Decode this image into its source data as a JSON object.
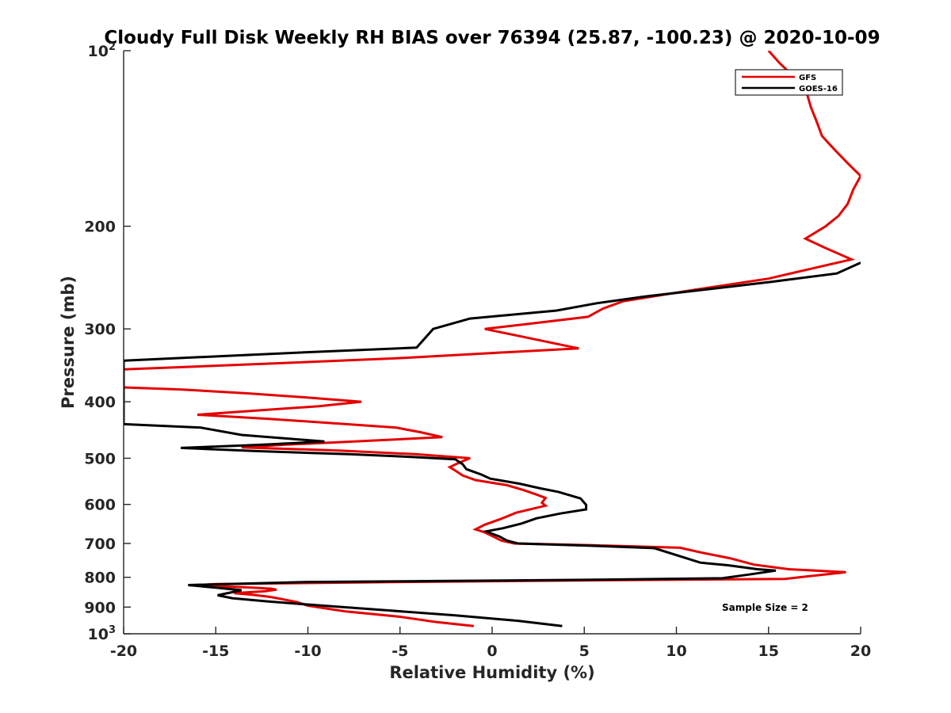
{
  "chart_data": {
    "type": "line",
    "title": "Cloudy Full Disk Weekly RH BIAS over 76394 (25.87, -100.23) @ 2020-10-09",
    "xlabel": "Relative Humidity (%)",
    "ylabel": "Pressure (mb)",
    "xlim": [
      -20,
      20
    ],
    "ylim": [
      100,
      1000
    ],
    "y_scale": "log",
    "y_reversed": true,
    "x_ticks": [
      -20,
      -15,
      -10,
      -5,
      0,
      5,
      10,
      15,
      20
    ],
    "x_tick_labels": [
      "-20",
      "-15",
      "-10",
      "-5",
      "0",
      "5",
      "10",
      "15",
      "20"
    ],
    "y_ticks": [
      200,
      300,
      400,
      500,
      600,
      700,
      800,
      900
    ],
    "y_tick_labels": [
      "200",
      "300",
      "400",
      "500",
      "600",
      "700",
      "800",
      "900"
    ],
    "y_end_ticks": [
      {
        "value": 100,
        "base": "10",
        "exp": "2"
      },
      {
        "value": 1000,
        "base": "10",
        "exp": "3"
      }
    ],
    "grid": false,
    "legend_position": "top-right",
    "annotation": "Sample Size = 2",
    "series": [
      {
        "name": "GFS",
        "color": "#e50000",
        "points": [
          [
            15.0,
            100
          ],
          [
            15.6,
            105
          ],
          [
            16.4,
            111
          ],
          [
            16.8,
            115
          ],
          [
            17.1,
            119
          ],
          [
            17.3,
            125
          ],
          [
            17.6,
            132
          ],
          [
            17.9,
            140
          ],
          [
            18.6,
            148
          ],
          [
            19.3,
            156
          ],
          [
            20.0,
            164
          ],
          [
            19.6,
            173
          ],
          [
            19.3,
            183
          ],
          [
            18.8,
            192
          ],
          [
            18.1,
            200
          ],
          [
            17.0,
            210
          ],
          [
            18.1,
            218
          ],
          [
            19.5,
            228
          ],
          [
            17.2,
            237
          ],
          [
            15.0,
            246
          ],
          [
            11.0,
            257
          ],
          [
            7.1,
            269
          ],
          [
            6.0,
            277
          ],
          [
            5.2,
            286
          ],
          [
            2.0,
            294
          ],
          [
            -0.4,
            300
          ],
          [
            2.2,
            312
          ],
          [
            4.7,
            324
          ],
          [
            0.0,
            330
          ],
          [
            -5.2,
            337
          ],
          [
            -12.0,
            344
          ],
          [
            -20.0,
            352
          ],
          [
            -20.0,
            365
          ],
          [
            -20.0,
            378
          ],
          [
            -16.9,
            381
          ],
          [
            -13.2,
            387
          ],
          [
            -10.2,
            393
          ],
          [
            -7.1,
            400
          ],
          [
            -9.4,
            407
          ],
          [
            -12.2,
            413
          ],
          [
            -16.0,
            421
          ],
          [
            -12.1,
            428
          ],
          [
            -8.3,
            436
          ],
          [
            -5.2,
            443
          ],
          [
            -3.9,
            451
          ],
          [
            -2.7,
            460
          ],
          [
            -5.7,
            465
          ],
          [
            -8.8,
            470
          ],
          [
            -11.3,
            474
          ],
          [
            -13.6,
            479
          ],
          [
            -8.3,
            485
          ],
          [
            -4.2,
            492
          ],
          [
            -1.2,
            500
          ],
          [
            -1.8,
            509
          ],
          [
            -2.3,
            518
          ],
          [
            -2.0,
            525
          ],
          [
            -1.6,
            535
          ],
          [
            -0.9,
            545
          ],
          [
            0.8,
            556
          ],
          [
            1.7,
            567
          ],
          [
            2.4,
            577
          ],
          [
            2.9,
            585
          ],
          [
            2.7,
            596
          ],
          [
            2.9,
            603
          ],
          [
            1.3,
            620
          ],
          [
            0.5,
            635
          ],
          [
            -0.4,
            650
          ],
          [
            -0.9,
            662
          ],
          [
            -0.4,
            670
          ],
          [
            0.1,
            682
          ],
          [
            0.5,
            692
          ],
          [
            1.2,
            700
          ],
          [
            5.5,
            705
          ],
          [
            10.2,
            712
          ],
          [
            11.3,
            725
          ],
          [
            12.9,
            742
          ],
          [
            14.2,
            761
          ],
          [
            16.1,
            775
          ],
          [
            19.2,
            784
          ],
          [
            15.9,
            805
          ],
          [
            5.0,
            810
          ],
          [
            -5.0,
            815
          ],
          [
            -15.0,
            822
          ],
          [
            -16.4,
            826
          ],
          [
            -15.0,
            828
          ],
          [
            -13.1,
            833
          ],
          [
            -12.0,
            837
          ],
          [
            -11.7,
            840
          ],
          [
            -12.3,
            845
          ],
          [
            -14.0,
            852
          ],
          [
            -13.0,
            857
          ],
          [
            -12.0,
            865
          ],
          [
            -10.6,
            882
          ],
          [
            -10.0,
            895
          ],
          [
            -8.0,
            915
          ],
          [
            -5.0,
            935
          ],
          [
            -3.0,
            955
          ],
          [
            -1.0,
            970
          ]
        ]
      },
      {
        "name": "GOES-16",
        "color": "#000000",
        "points": [
          [
            20.0,
            231
          ],
          [
            18.7,
            241
          ],
          [
            15.2,
            249
          ],
          [
            8.3,
            264
          ],
          [
            5.7,
            271
          ],
          [
            3.5,
            279
          ],
          [
            -1.2,
            288
          ],
          [
            -3.2,
            300
          ],
          [
            -4.1,
            323
          ],
          [
            -11.0,
            330
          ],
          [
            -20.0,
            340
          ],
          [
            -20.0,
            400
          ],
          [
            -20.0,
            437
          ],
          [
            -15.8,
            443
          ],
          [
            -13.6,
            456
          ],
          [
            -9.1,
            468
          ],
          [
            -12.5,
            474
          ],
          [
            -16.9,
            480
          ],
          [
            -12.8,
            486
          ],
          [
            -7.8,
            492
          ],
          [
            -4.6,
            497
          ],
          [
            -2.0,
            502
          ],
          [
            -1.6,
            512
          ],
          [
            -1.4,
            522
          ],
          [
            -0.6,
            533
          ],
          [
            -0.1,
            542
          ],
          [
            1.5,
            553
          ],
          [
            2.6,
            563
          ],
          [
            3.6,
            571
          ],
          [
            4.8,
            586
          ],
          [
            5.1,
            601
          ],
          [
            5.1,
            612
          ],
          [
            3.7,
            622
          ],
          [
            2.4,
            634
          ],
          [
            1.6,
            647
          ],
          [
            0.6,
            659
          ],
          [
            -0.3,
            667
          ],
          [
            -0.1,
            672
          ],
          [
            0.4,
            681
          ],
          [
            0.8,
            692
          ],
          [
            1.4,
            700
          ],
          [
            5.2,
            706
          ],
          [
            8.8,
            713
          ],
          [
            10.0,
            733
          ],
          [
            11.3,
            755
          ],
          [
            12.8,
            763
          ],
          [
            14.4,
            775
          ],
          [
            15.4,
            779
          ],
          [
            14.1,
            790
          ],
          [
            12.5,
            803
          ],
          [
            5.0,
            808
          ],
          [
            -3.0,
            812
          ],
          [
            -10.0,
            815
          ],
          [
            -16.5,
            825
          ],
          [
            -14.9,
            834
          ],
          [
            -13.6,
            842
          ],
          [
            -14.9,
            859
          ],
          [
            -14.1,
            869
          ],
          [
            -12.2,
            880
          ],
          [
            -9.6,
            893
          ],
          [
            -6.0,
            910
          ],
          [
            -2.0,
            930
          ],
          [
            1.4,
            950
          ],
          [
            3.8,
            970
          ]
        ]
      }
    ]
  }
}
